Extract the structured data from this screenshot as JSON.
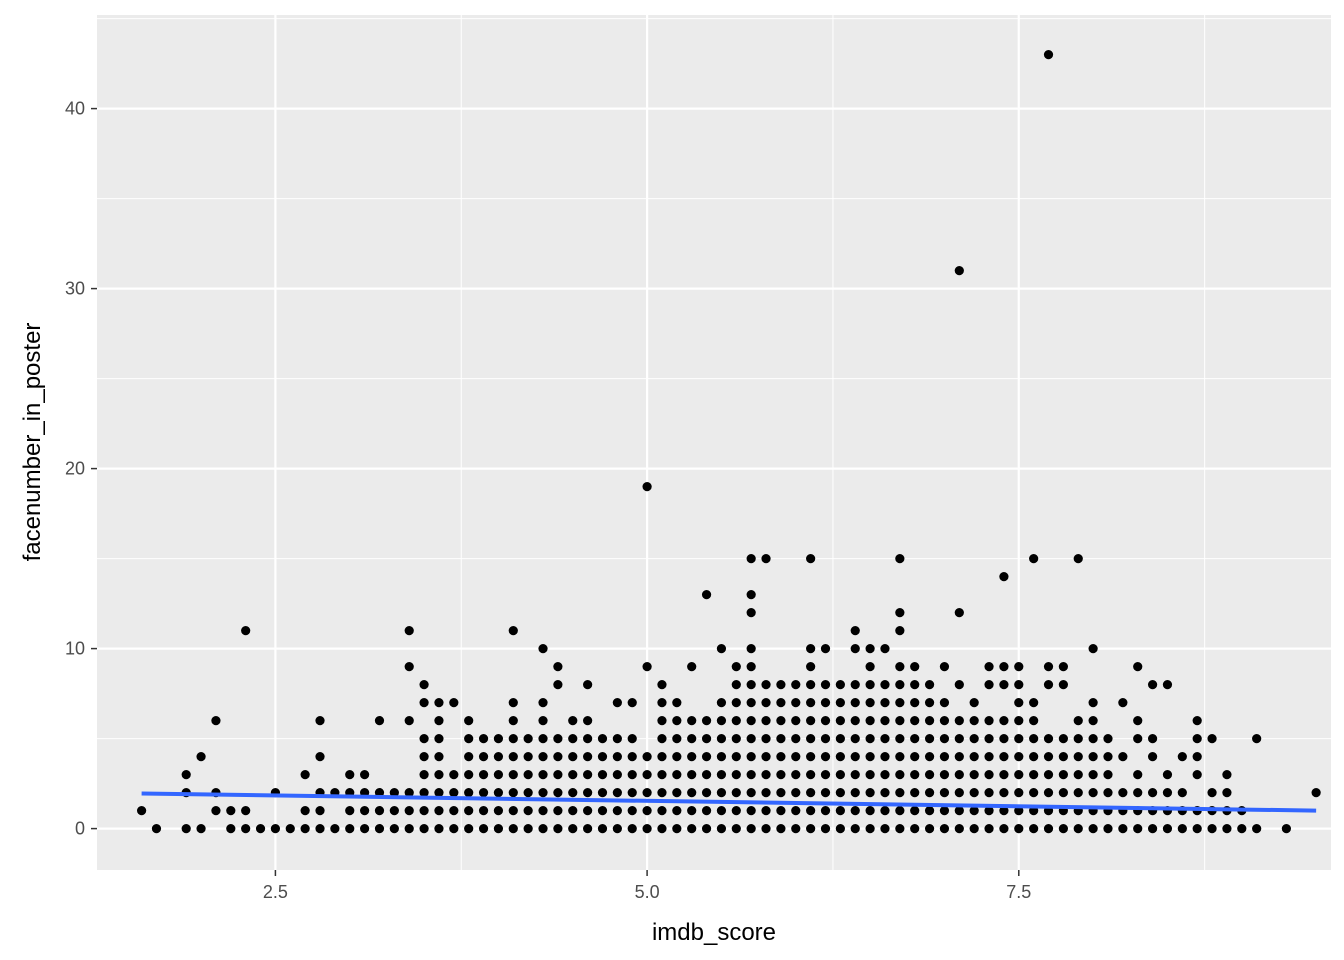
{
  "chart_data": {
    "type": "scatter",
    "title": "",
    "xlabel": "imdb_score",
    "ylabel": "facenumber_in_poster",
    "xlim": [
      1.3,
      9.6
    ],
    "ylim": [
      -2.3,
      45.2
    ],
    "x_ticks": [
      2.5,
      5.0,
      7.5
    ],
    "x_tick_labels": [
      "2.5",
      "5.0",
      "7.5"
    ],
    "y_ticks": [
      0,
      10,
      20,
      30,
      40
    ],
    "y_tick_labels": [
      "0",
      "10",
      "20",
      "30",
      "40"
    ],
    "grid": true,
    "legend": "none",
    "colors": {
      "panel": "#ebebeb",
      "grid": "#ffffff",
      "points": "#000000",
      "smooth": "#3366ff"
    },
    "trend_line": {
      "method": "lm",
      "x": [
        1.6,
        9.5
      ],
      "y": [
        1.95,
        1.0
      ]
    },
    "columns": [
      {
        "x": 1.6,
        "y": [
          1
        ]
      },
      {
        "x": 1.7,
        "y": [
          0
        ]
      },
      {
        "x": 1.9,
        "y": [
          0,
          2,
          3
        ]
      },
      {
        "x": 2.0,
        "y": [
          0,
          4
        ]
      },
      {
        "x": 2.1,
        "y": [
          1,
          2,
          6
        ]
      },
      {
        "x": 2.2,
        "y": [
          0,
          1
        ]
      },
      {
        "x": 2.3,
        "y": [
          0,
          1,
          11
        ]
      },
      {
        "x": 2.4,
        "y": [
          0
        ]
      },
      {
        "x": 2.5,
        "y": [
          0,
          2
        ]
      },
      {
        "x": 2.6,
        "y": [
          0
        ]
      },
      {
        "x": 2.7,
        "y": [
          0,
          1,
          3
        ]
      },
      {
        "x": 2.8,
        "y": [
          0,
          1,
          2,
          4,
          6
        ]
      },
      {
        "x": 2.9,
        "y": [
          0,
          2
        ]
      },
      {
        "x": 3.0,
        "y": [
          0,
          1,
          2,
          3
        ]
      },
      {
        "x": 3.1,
        "y": [
          0,
          1,
          2,
          3
        ]
      },
      {
        "x": 3.2,
        "y": [
          0,
          1,
          2,
          6
        ]
      },
      {
        "x": 3.3,
        "y": [
          0,
          1,
          2
        ]
      },
      {
        "x": 3.4,
        "y": [
          0,
          1,
          2,
          6,
          9,
          11
        ]
      },
      {
        "x": 3.5,
        "y": [
          0,
          1,
          2,
          3,
          4,
          5,
          7,
          8
        ]
      },
      {
        "x": 3.6,
        "y": [
          0,
          1,
          2,
          3,
          4,
          5,
          6,
          7
        ]
      },
      {
        "x": 3.7,
        "y": [
          0,
          1,
          2,
          3,
          7
        ]
      },
      {
        "x": 3.8,
        "y": [
          0,
          1,
          2,
          3,
          4,
          5,
          6
        ]
      },
      {
        "x": 3.9,
        "y": [
          0,
          1,
          2,
          3,
          4,
          5
        ]
      },
      {
        "x": 4.0,
        "y": [
          0,
          1,
          2,
          3,
          4,
          5
        ]
      },
      {
        "x": 4.1,
        "y": [
          0,
          1,
          2,
          3,
          4,
          5,
          6,
          7,
          11
        ]
      },
      {
        "x": 4.2,
        "y": [
          0,
          1,
          2,
          3,
          4,
          5
        ]
      },
      {
        "x": 4.3,
        "y": [
          0,
          1,
          2,
          3,
          4,
          5,
          6,
          7,
          10
        ]
      },
      {
        "x": 4.4,
        "y": [
          0,
          1,
          2,
          3,
          4,
          5,
          8,
          9
        ]
      },
      {
        "x": 4.5,
        "y": [
          0,
          1,
          2,
          3,
          4,
          5,
          6
        ]
      },
      {
        "x": 4.6,
        "y": [
          0,
          1,
          2,
          3,
          4,
          5,
          6,
          8
        ]
      },
      {
        "x": 4.7,
        "y": [
          0,
          1,
          2,
          3,
          4,
          5
        ]
      },
      {
        "x": 4.8,
        "y": [
          0,
          1,
          2,
          3,
          4,
          5,
          7
        ]
      },
      {
        "x": 4.9,
        "y": [
          0,
          1,
          2,
          3,
          4,
          5,
          7
        ]
      },
      {
        "x": 5.0,
        "y": [
          0,
          1,
          2,
          3,
          4,
          9,
          19
        ]
      },
      {
        "x": 5.1,
        "y": [
          0,
          1,
          2,
          3,
          4,
          5,
          6,
          7,
          8
        ]
      },
      {
        "x": 5.2,
        "y": [
          0,
          1,
          2,
          3,
          4,
          5,
          6,
          7
        ]
      },
      {
        "x": 5.3,
        "y": [
          0,
          1,
          2,
          3,
          4,
          5,
          6,
          9
        ]
      },
      {
        "x": 5.4,
        "y": [
          0,
          1,
          2,
          3,
          4,
          5,
          6,
          13
        ]
      },
      {
        "x": 5.5,
        "y": [
          0,
          1,
          2,
          3,
          4,
          5,
          6,
          7,
          10
        ]
      },
      {
        "x": 5.6,
        "y": [
          0,
          1,
          2,
          3,
          4,
          5,
          6,
          7,
          8,
          9
        ]
      },
      {
        "x": 5.7,
        "y": [
          0,
          1,
          2,
          3,
          4,
          5,
          6,
          7,
          8,
          9,
          10,
          12,
          13,
          15
        ]
      },
      {
        "x": 5.8,
        "y": [
          0,
          1,
          2,
          3,
          4,
          5,
          6,
          7,
          8,
          15
        ]
      },
      {
        "x": 5.9,
        "y": [
          0,
          1,
          2,
          3,
          4,
          5,
          6,
          7,
          8
        ]
      },
      {
        "x": 6.0,
        "y": [
          0,
          1,
          2,
          3,
          4,
          5,
          6,
          7,
          8
        ]
      },
      {
        "x": 6.1,
        "y": [
          0,
          1,
          2,
          3,
          4,
          5,
          6,
          7,
          8,
          9,
          10,
          15
        ]
      },
      {
        "x": 6.2,
        "y": [
          0,
          1,
          2,
          3,
          4,
          5,
          6,
          7,
          8,
          10
        ]
      },
      {
        "x": 6.3,
        "y": [
          0,
          1,
          2,
          3,
          4,
          5,
          6,
          7,
          8
        ]
      },
      {
        "x": 6.4,
        "y": [
          0,
          1,
          2,
          3,
          4,
          5,
          6,
          7,
          8,
          10,
          11
        ]
      },
      {
        "x": 6.5,
        "y": [
          0,
          1,
          2,
          3,
          4,
          5,
          6,
          7,
          8,
          9,
          10
        ]
      },
      {
        "x": 6.6,
        "y": [
          0,
          1,
          2,
          3,
          4,
          5,
          6,
          7,
          8,
          10
        ]
      },
      {
        "x": 6.7,
        "y": [
          0,
          1,
          2,
          3,
          4,
          5,
          6,
          7,
          8,
          9,
          11,
          12,
          15
        ]
      },
      {
        "x": 6.8,
        "y": [
          0,
          1,
          2,
          3,
          4,
          5,
          6,
          7,
          8,
          9
        ]
      },
      {
        "x": 6.9,
        "y": [
          0,
          1,
          2,
          3,
          4,
          5,
          6,
          7,
          8
        ]
      },
      {
        "x": 7.0,
        "y": [
          0,
          1,
          2,
          3,
          4,
          5,
          6,
          7,
          9
        ]
      },
      {
        "x": 7.1,
        "y": [
          0,
          1,
          2,
          3,
          4,
          5,
          6,
          8,
          12,
          31
        ]
      },
      {
        "x": 7.2,
        "y": [
          0,
          1,
          2,
          3,
          4,
          5,
          6,
          7
        ]
      },
      {
        "x": 7.3,
        "y": [
          0,
          1,
          2,
          3,
          4,
          5,
          6,
          8,
          9
        ]
      },
      {
        "x": 7.4,
        "y": [
          0,
          1,
          2,
          3,
          4,
          5,
          6,
          8,
          9,
          14
        ]
      },
      {
        "x": 7.5,
        "y": [
          0,
          1,
          2,
          3,
          4,
          5,
          6,
          7,
          8,
          9
        ]
      },
      {
        "x": 7.6,
        "y": [
          0,
          1,
          2,
          3,
          4,
          5,
          6,
          7,
          15
        ]
      },
      {
        "x": 7.7,
        "y": [
          0,
          1,
          2,
          3,
          4,
          5,
          8,
          9,
          43
        ]
      },
      {
        "x": 7.8,
        "y": [
          0,
          1,
          2,
          3,
          4,
          5,
          8,
          9
        ]
      },
      {
        "x": 7.9,
        "y": [
          0,
          1,
          2,
          3,
          4,
          5,
          6,
          15
        ]
      },
      {
        "x": 8.0,
        "y": [
          0,
          1,
          2,
          3,
          4,
          5,
          6,
          7,
          10
        ]
      },
      {
        "x": 8.1,
        "y": [
          0,
          1,
          2,
          3,
          4,
          5
        ]
      },
      {
        "x": 8.2,
        "y": [
          0,
          1,
          2,
          4,
          7
        ]
      },
      {
        "x": 8.3,
        "y": [
          0,
          1,
          2,
          3,
          5,
          6,
          9
        ]
      },
      {
        "x": 8.4,
        "y": [
          0,
          1,
          2,
          4,
          5,
          8
        ]
      },
      {
        "x": 8.5,
        "y": [
          0,
          1,
          2,
          3,
          8
        ]
      },
      {
        "x": 8.6,
        "y": [
          0,
          1,
          2,
          4
        ]
      },
      {
        "x": 8.7,
        "y": [
          0,
          1,
          3,
          4,
          5,
          6
        ]
      },
      {
        "x": 8.8,
        "y": [
          0,
          1,
          2,
          5
        ]
      },
      {
        "x": 8.9,
        "y": [
          0,
          1,
          2,
          3
        ]
      },
      {
        "x": 9.0,
        "y": [
          0,
          1
        ]
      },
      {
        "x": 9.1,
        "y": [
          0,
          5
        ]
      },
      {
        "x": 9.3,
        "y": [
          0
        ]
      },
      {
        "x": 9.5,
        "y": [
          2
        ]
      }
    ]
  }
}
